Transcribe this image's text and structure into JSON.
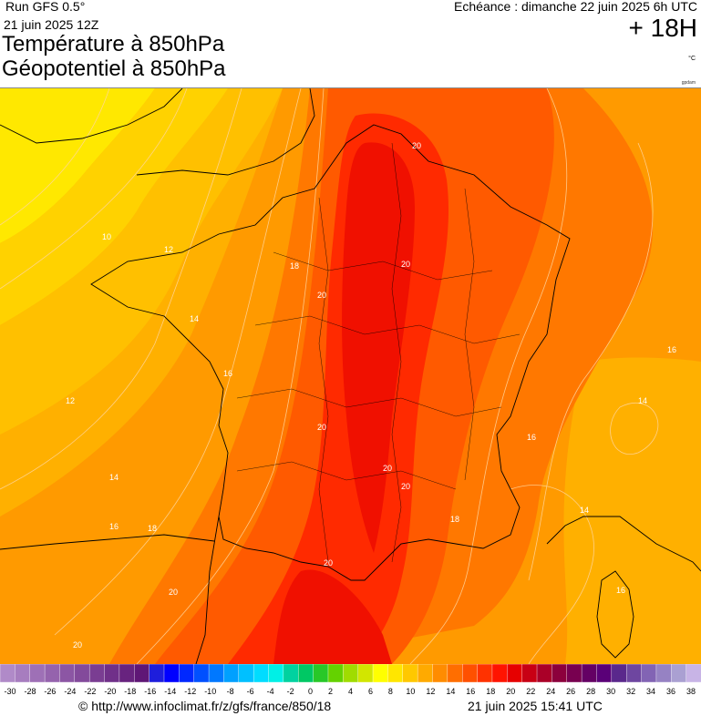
{
  "header": {
    "run": "Run GFS 0.5°",
    "run_date": "21 juin 2025 12Z",
    "title_line1": "Température à 850hPa",
    "title_line2": "Géopotentiel à 850hPa",
    "echeance": "Echéance : dimanche 22 juin 2025 6h UTC",
    "lead_time": "+ 18H",
    "unit": "°C",
    "credit": "gpdam"
  },
  "map": {
    "region": "France",
    "background_color": "#ffb000",
    "isotherm_labels": [
      "20",
      "20",
      "20",
      "20",
      "20",
      "20",
      "20",
      "20",
      "20",
      "18",
      "18",
      "18",
      "16",
      "16",
      "16",
      "16",
      "16",
      "14",
      "14",
      "14",
      "14",
      "12",
      "12",
      "10"
    ]
  },
  "colorbar": {
    "tick_labels": [
      "-30",
      "-28",
      "-26",
      "-24",
      "-22",
      "-20",
      "-18",
      "-16",
      "-14",
      "-12",
      "-10",
      "-8",
      "-6",
      "-4",
      "-2",
      "0",
      "2",
      "4",
      "6",
      "8",
      "10",
      "12",
      "14",
      "16",
      "18",
      "20",
      "22",
      "24",
      "26",
      "28",
      "30",
      "32",
      "34",
      "36",
      "38"
    ],
    "colors": [
      "#b08ac8",
      "#a77dbf",
      "#9e70b6",
      "#9563ad",
      "#8c56a4",
      "#834a9b",
      "#7a3d92",
      "#703089",
      "#68237f",
      "#5f1776",
      "#1e1edc",
      "#0000ff",
      "#0028ff",
      "#0050ff",
      "#0078ff",
      "#00a0ff",
      "#00c0ff",
      "#00dcff",
      "#00f0e6",
      "#00d2a0",
      "#00c864",
      "#28c828",
      "#64d200",
      "#a0dc00",
      "#d2e600",
      "#ffff00",
      "#ffe600",
      "#ffc800",
      "#ffaa00",
      "#ff8c00",
      "#ff6e00",
      "#ff5000",
      "#ff3200",
      "#ff1400",
      "#e60000",
      "#c80014",
      "#aa0028",
      "#8c003c",
      "#780050",
      "#640064",
      "#5a0078",
      "#5a288c",
      "#6e46a0",
      "#8264b4",
      "#9682c3",
      "#aaa0d2",
      "#c8b4e6"
    ]
  },
  "footer": {
    "url": "© http://www.infoclimat.fr/z/gfs/france/850/18",
    "timestamp": "21 juin 2025 15:41 UTC"
  }
}
